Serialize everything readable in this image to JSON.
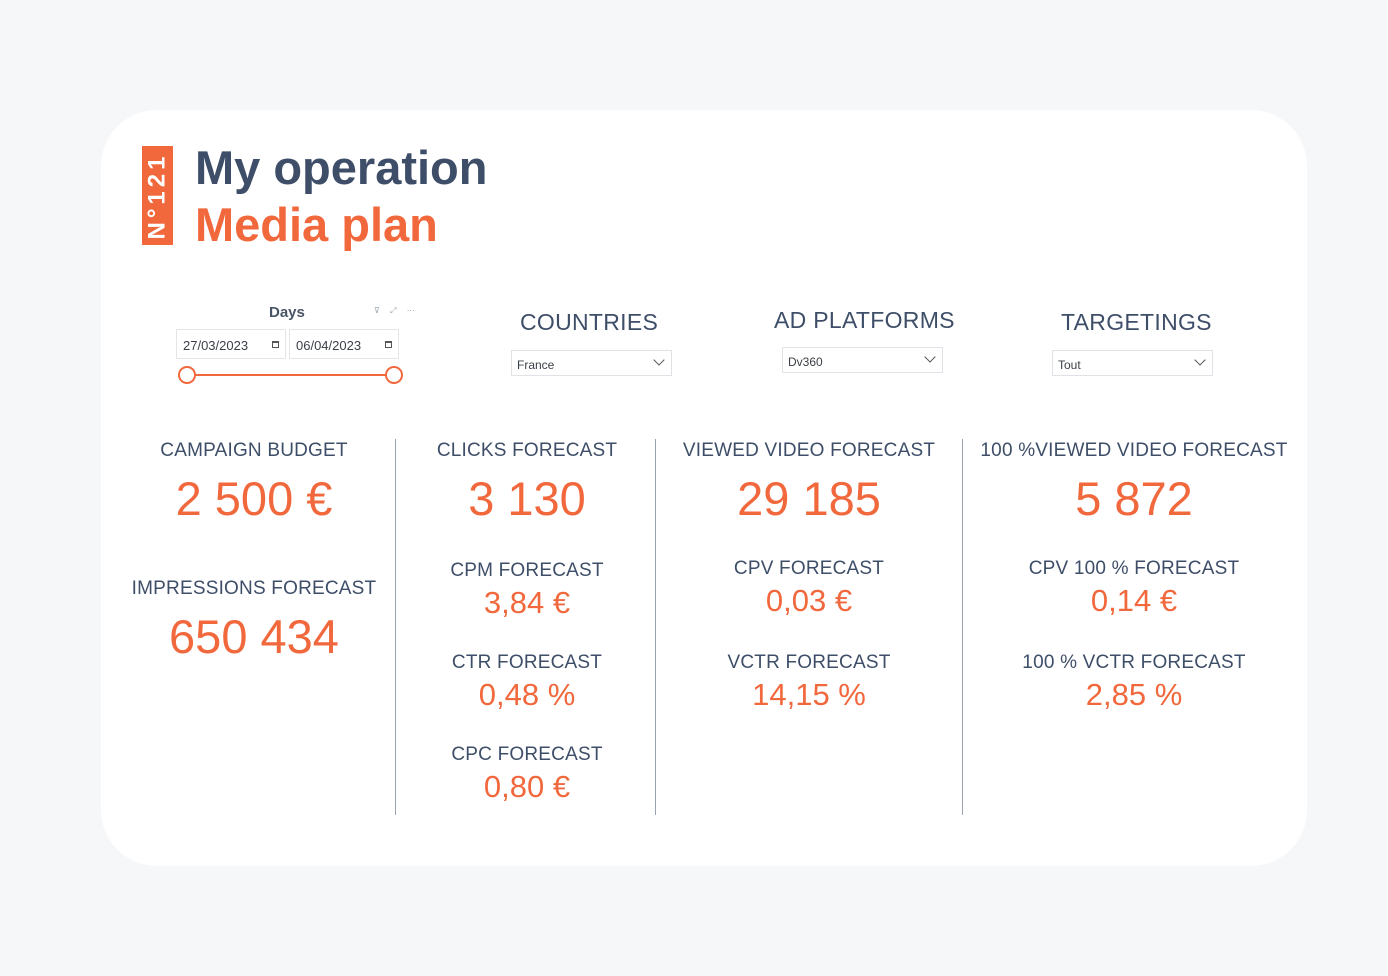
{
  "header": {
    "badge": "N°121",
    "title": "My operation",
    "subtitle": "Media plan"
  },
  "days_slicer": {
    "label": "Days",
    "start_date": "27/03/2023",
    "end_date": "06/04/2023"
  },
  "filters": {
    "countries": {
      "label": "COUNTRIES",
      "value": "France"
    },
    "ad_platforms": {
      "label": "AD PLATFORMS",
      "value": "Dv360"
    },
    "targetings": {
      "label": "TARGETINGS",
      "value": "Tout"
    }
  },
  "kpis": {
    "campaign_budget": {
      "label": "CAMPAIGN BUDGET",
      "value": "2 500 €"
    },
    "impressions_forecast": {
      "label": "IMPRESSIONS FORECAST",
      "value": "650 434"
    },
    "clicks_forecast": {
      "label": "CLICKS FORECAST",
      "value": "3 130"
    },
    "cpm_forecast": {
      "label": "CPM FORECAST",
      "value": "3,84 €"
    },
    "ctr_forecast": {
      "label": "CTR FORECAST",
      "value": "0,48 %"
    },
    "cpc_forecast": {
      "label": "CPC FORECAST",
      "value": "0,80 €"
    },
    "viewed_video_forecast": {
      "label": "VIEWED VIDEO FORECAST",
      "value": "29 185"
    },
    "cpv_forecast": {
      "label": "CPV FORECAST",
      "value": "0,03 €"
    },
    "vctr_forecast": {
      "label": "VCTR FORECAST",
      "value": "14,15 %"
    },
    "full_viewed_video_forecast": {
      "label": "100 %VIEWED VIDEO FORECAST",
      "value": "5 872"
    },
    "cpv_100_forecast": {
      "label": "CPV 100 % FORECAST",
      "value": "0,14 €"
    },
    "vctr_100_forecast": {
      "label": "100 % VCTR FORECAST",
      "value": "2,85 %"
    }
  },
  "colors": {
    "accent": "#f2683d",
    "heading": "#3e4e68",
    "background": "#f6f7f9",
    "card": "#ffffff"
  }
}
